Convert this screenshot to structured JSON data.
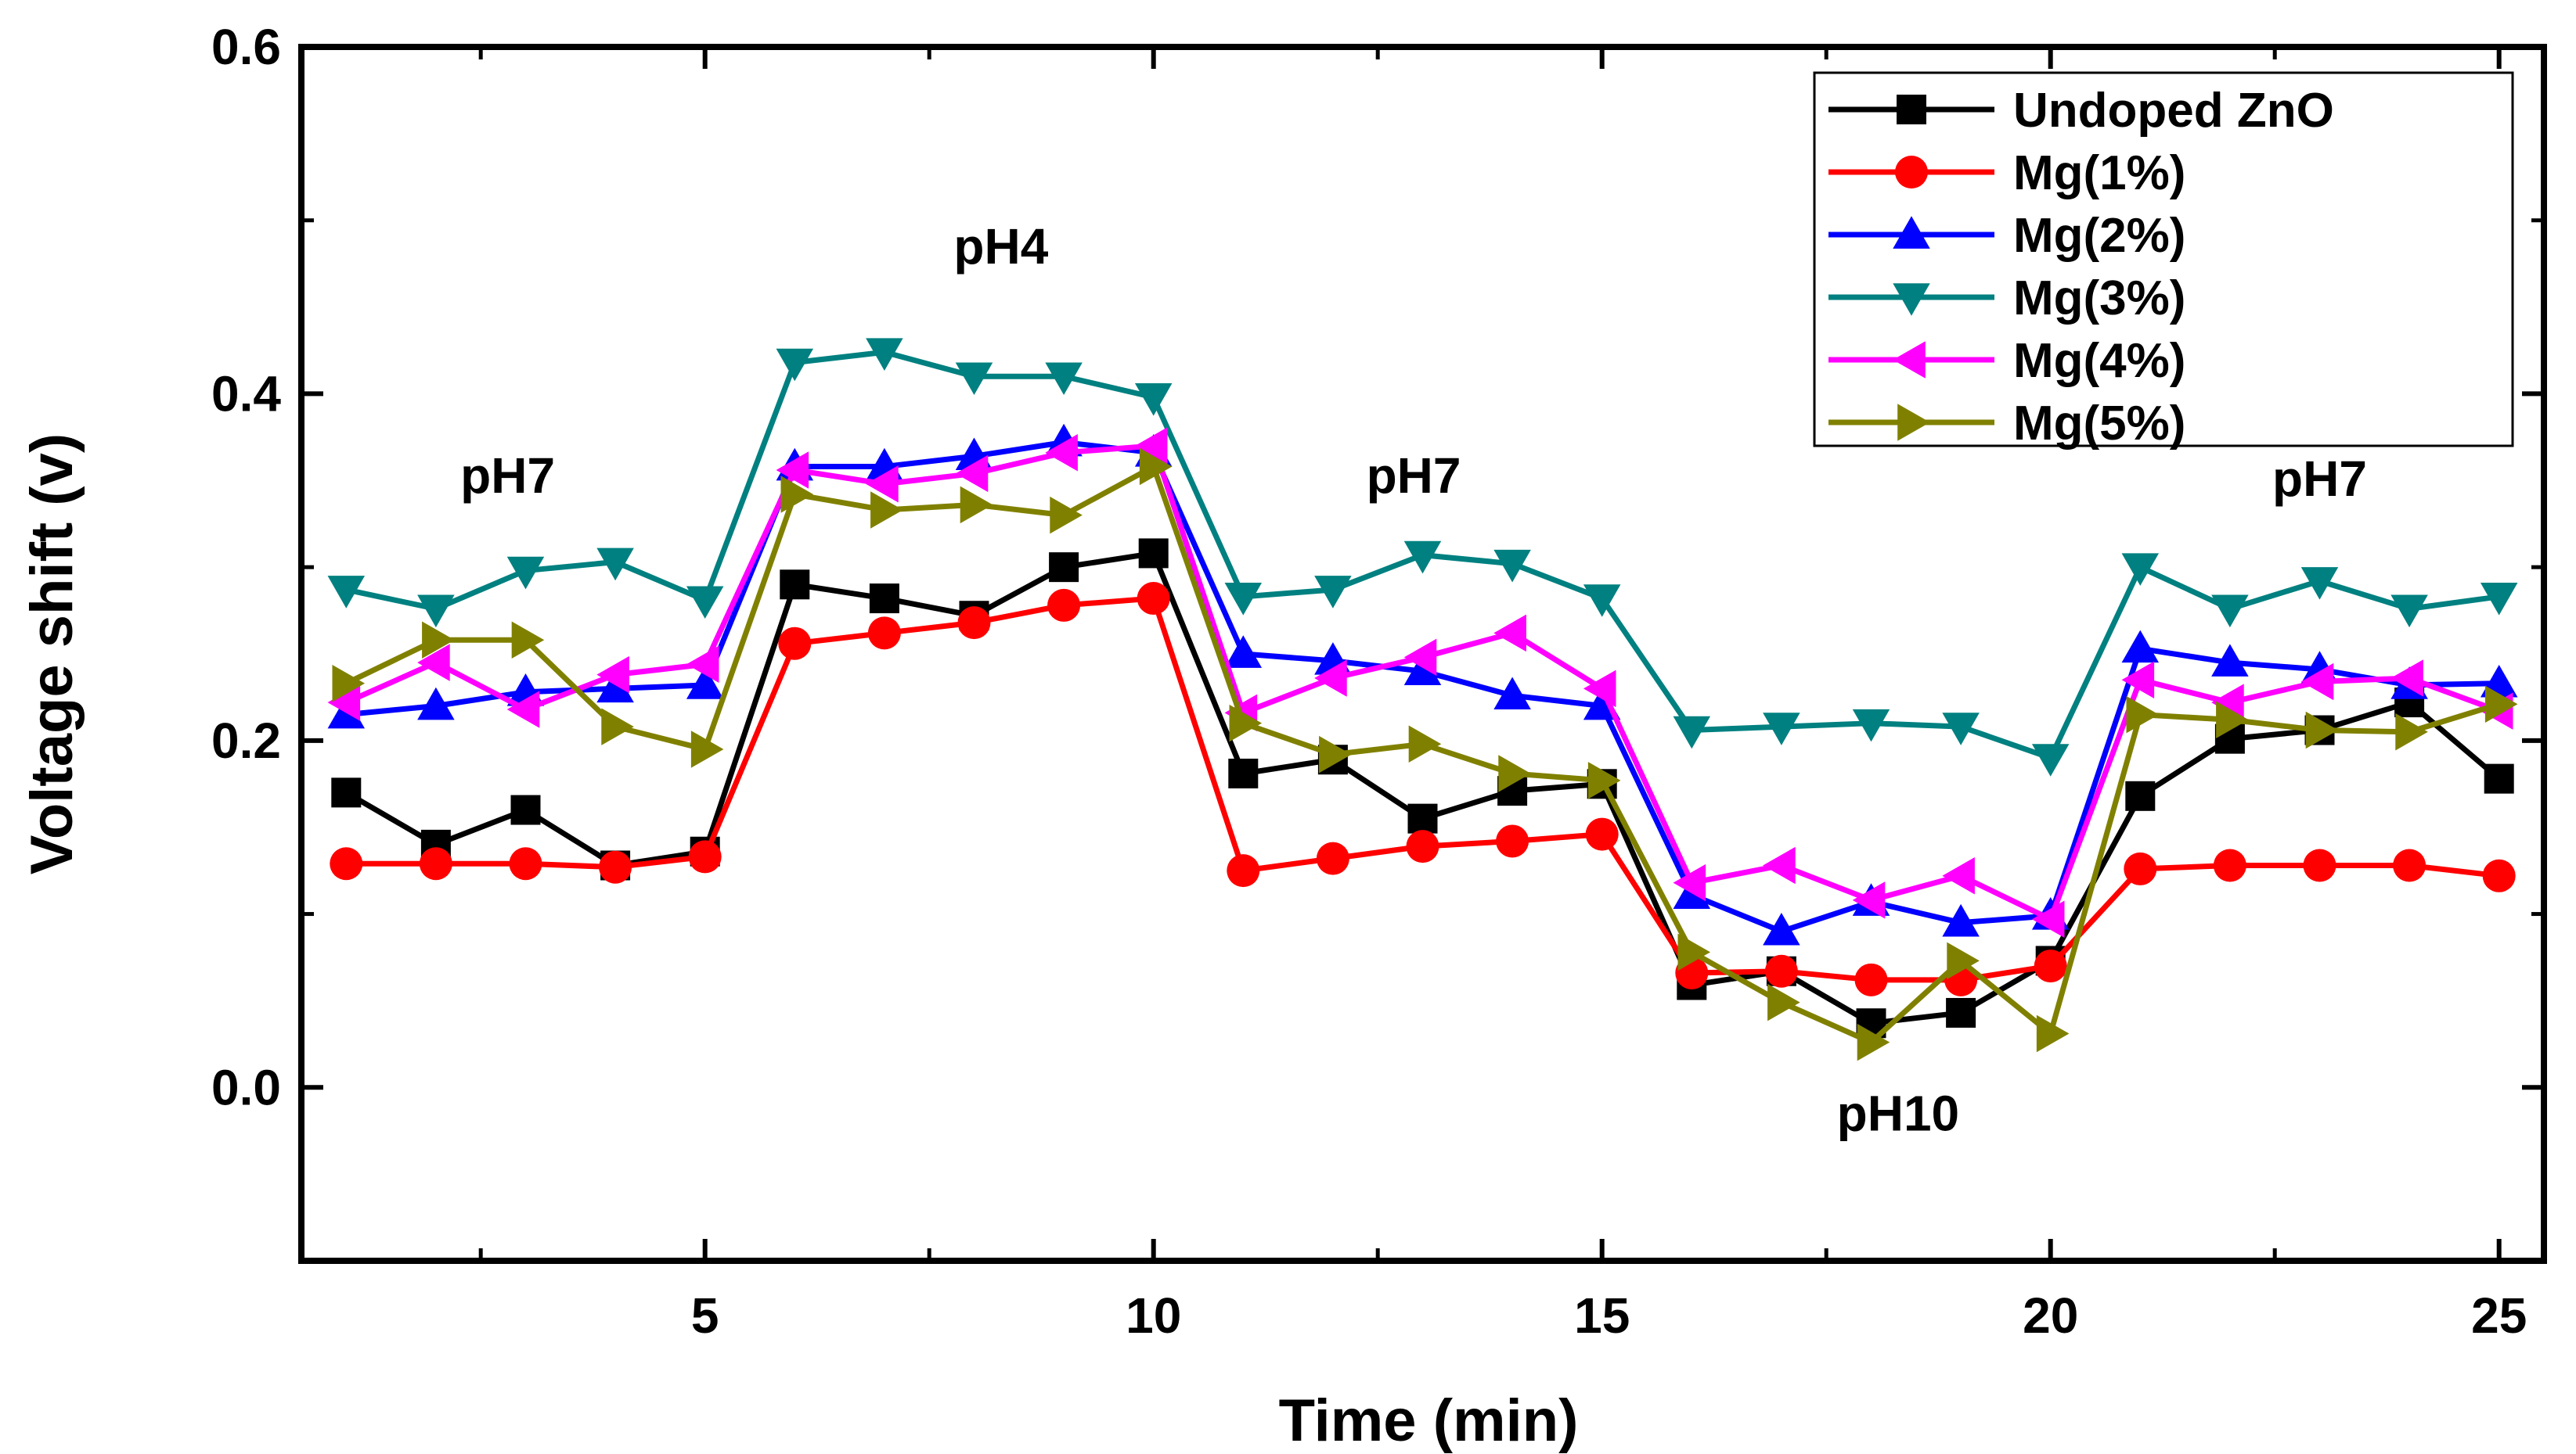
{
  "chart_data": {
    "type": "line",
    "title": "",
    "xlabel": "Time (min)",
    "ylabel": "Voltage shift (v)",
    "xlim": [
      0.5,
      25.5
    ],
    "ylim": [
      -0.1,
      0.6
    ],
    "xticks": [
      5,
      10,
      15,
      20,
      25
    ],
    "yticks": [
      0.0,
      0.2,
      0.4,
      0.6
    ],
    "grid": false,
    "legend_position": "top-right",
    "x": [
      1,
      2,
      3,
      4,
      5,
      6,
      7,
      8,
      9,
      10,
      11,
      12,
      13,
      14,
      15,
      16,
      17,
      18,
      19,
      20,
      21,
      22,
      23,
      24,
      25
    ],
    "series": [
      {
        "name": "Undoped ZnO",
        "color": "#000000",
        "marker": "square",
        "values": [
          0.17,
          0.14,
          0.16,
          0.128,
          0.136,
          0.29,
          0.282,
          0.272,
          0.3,
          0.308,
          0.181,
          0.189,
          0.155,
          0.171,
          0.175,
          0.059,
          0.067,
          0.037,
          0.043,
          0.073,
          0.168,
          0.201,
          0.206,
          0.222,
          0.178
        ]
      },
      {
        "name": "Mg(1%)",
        "color": "#ff0000",
        "marker": "circle",
        "values": [
          0.129,
          0.129,
          0.129,
          0.127,
          0.133,
          0.256,
          0.262,
          0.268,
          0.278,
          0.282,
          0.125,
          0.132,
          0.139,
          0.142,
          0.146,
          0.066,
          0.067,
          0.062,
          0.062,
          0.07,
          0.126,
          0.128,
          0.128,
          0.128,
          0.122
        ]
      },
      {
        "name": "Mg(2%)",
        "color": "#0000ff",
        "marker": "triangle-up",
        "values": [
          0.215,
          0.22,
          0.228,
          0.23,
          0.232,
          0.358,
          0.358,
          0.364,
          0.372,
          0.366,
          0.25,
          0.246,
          0.24,
          0.226,
          0.22,
          0.111,
          0.09,
          0.107,
          0.095,
          0.099,
          0.253,
          0.245,
          0.241,
          0.232,
          0.233
        ]
      },
      {
        "name": "Mg(3%)",
        "color": "#008080",
        "marker": "triangle-down",
        "values": [
          0.287,
          0.276,
          0.298,
          0.303,
          0.281,
          0.418,
          0.424,
          0.41,
          0.41,
          0.398,
          0.283,
          0.287,
          0.307,
          0.302,
          0.282,
          0.206,
          0.208,
          0.21,
          0.208,
          0.19,
          0.3,
          0.276,
          0.292,
          0.276,
          0.283
        ]
      },
      {
        "name": "Mg(4%)",
        "color": "#ff00ff",
        "marker": "triangle-left",
        "values": [
          0.222,
          0.245,
          0.218,
          0.238,
          0.244,
          0.356,
          0.348,
          0.354,
          0.366,
          0.37,
          0.216,
          0.236,
          0.248,
          0.262,
          0.23,
          0.118,
          0.128,
          0.108,
          0.122,
          0.097,
          0.235,
          0.222,
          0.234,
          0.236,
          0.217
        ]
      },
      {
        "name": "Mg(5%)",
        "color": "#808000",
        "marker": "triangle-right",
        "values": [
          0.233,
          0.258,
          0.258,
          0.208,
          0.195,
          0.342,
          0.333,
          0.336,
          0.33,
          0.358,
          0.21,
          0.192,
          0.198,
          0.181,
          0.177,
          0.078,
          0.049,
          0.026,
          0.073,
          0.031,
          0.215,
          0.212,
          0.206,
          0.205,
          0.221
        ]
      }
    ],
    "annotations": [
      {
        "text": "pH7",
        "x": 2.8,
        "y": 0.343
      },
      {
        "text": "pH4",
        "x": 8.3,
        "y": 0.475
      },
      {
        "text": "pH7",
        "x": 12.9,
        "y": 0.343
      },
      {
        "text": "pH7",
        "x": 23.0,
        "y": 0.341
      },
      {
        "text": "pH10",
        "x": 18.3,
        "y": -0.025
      }
    ]
  }
}
